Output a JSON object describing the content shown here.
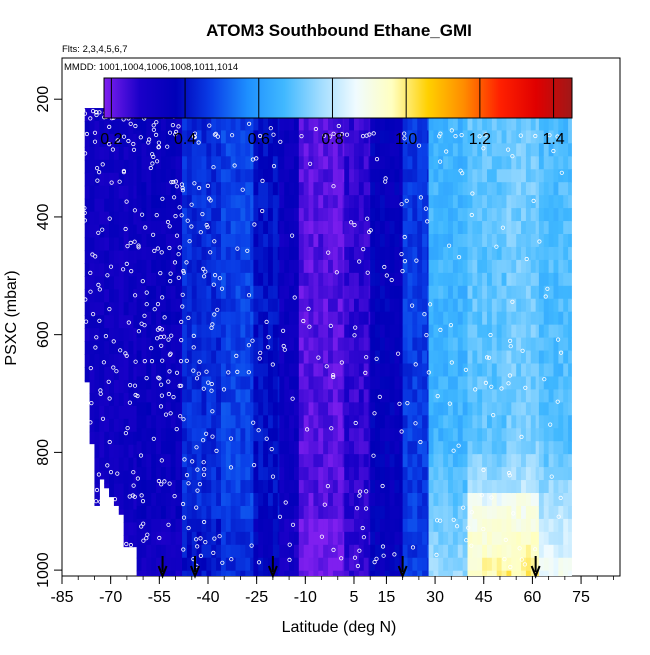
{
  "chart_data": {
    "type": "heatmap",
    "title": "ATOM3 Southbound Ethane_GMI",
    "flights_note": "Flts: 2,3,4,5,6,7",
    "dates_note": "MMDD: 1001,1004,1006,1008,1011,1014",
    "xlabel": "Latitude (deg N)",
    "ylabel": "PSXC (mbar)",
    "xlim": [
      -85,
      87
    ],
    "ylim": [
      1010,
      130
    ],
    "x_ticks": [
      -85,
      -70,
      -55,
      -40,
      -25,
      -10,
      5,
      15,
      30,
      45,
      60,
      75
    ],
    "x_tick_labels": [
      "-85",
      "-70",
      "-55",
      "-40",
      "-25",
      "-10",
      "5",
      "15",
      "30",
      "45",
      "60",
      "75"
    ],
    "y_ticks": [
      200,
      400,
      600,
      800,
      1000
    ],
    "y_tick_labels": [
      "200",
      "400",
      "600",
      "800",
      "1000"
    ],
    "colorbar": {
      "range": [
        0.18,
        1.45
      ],
      "ticks": [
        0.2,
        0.4,
        0.6,
        0.8,
        1.0,
        1.2,
        1.4
      ],
      "tick_labels": [
        "0.2",
        "0.4",
        "0.6",
        "0.8",
        "1.0",
        "1.2",
        "1.4"
      ],
      "colors": [
        "#7f1fef",
        "#1a00c8",
        "#0000b8",
        "#0a40e8",
        "#1e90ff",
        "#40b8ff",
        "#a0dcff",
        "#f0fbff",
        "#ffffc0",
        "#ffd000",
        "#ff8c00",
        "#ff2000",
        "#e00000",
        "#a01818"
      ]
    },
    "bands": [
      {
        "lat_start": -78,
        "lat_end": -62,
        "value": 0.32
      },
      {
        "lat_start": -62,
        "lat_end": -48,
        "value": 0.34
      },
      {
        "lat_start": -48,
        "lat_end": -36,
        "value": 0.44
      },
      {
        "lat_start": -36,
        "lat_end": -26,
        "value": 0.47
      },
      {
        "lat_start": -26,
        "lat_end": -18,
        "value": 0.4
      },
      {
        "lat_start": -18,
        "lat_end": -12,
        "value": 0.33
      },
      {
        "lat_start": -12,
        "lat_end": 2,
        "value": 0.22
      },
      {
        "lat_start": 2,
        "lat_end": 10,
        "value": 0.26
      },
      {
        "lat_start": 10,
        "lat_end": 20,
        "value": 0.36
      },
      {
        "lat_start": 20,
        "lat_end": 28,
        "value": 0.46
      },
      {
        "lat_start": 28,
        "lat_end": 40,
        "value": 0.66
      },
      {
        "lat_start": 40,
        "lat_end": 52,
        "value": 0.7
      },
      {
        "lat_start": 52,
        "lat_end": 62,
        "value": 0.72
      },
      {
        "lat_start": 62,
        "lat_end": 72,
        "value": 0.68
      }
    ],
    "marked_latitudes": [
      -54,
      -44,
      -20,
      20,
      61
    ]
  }
}
